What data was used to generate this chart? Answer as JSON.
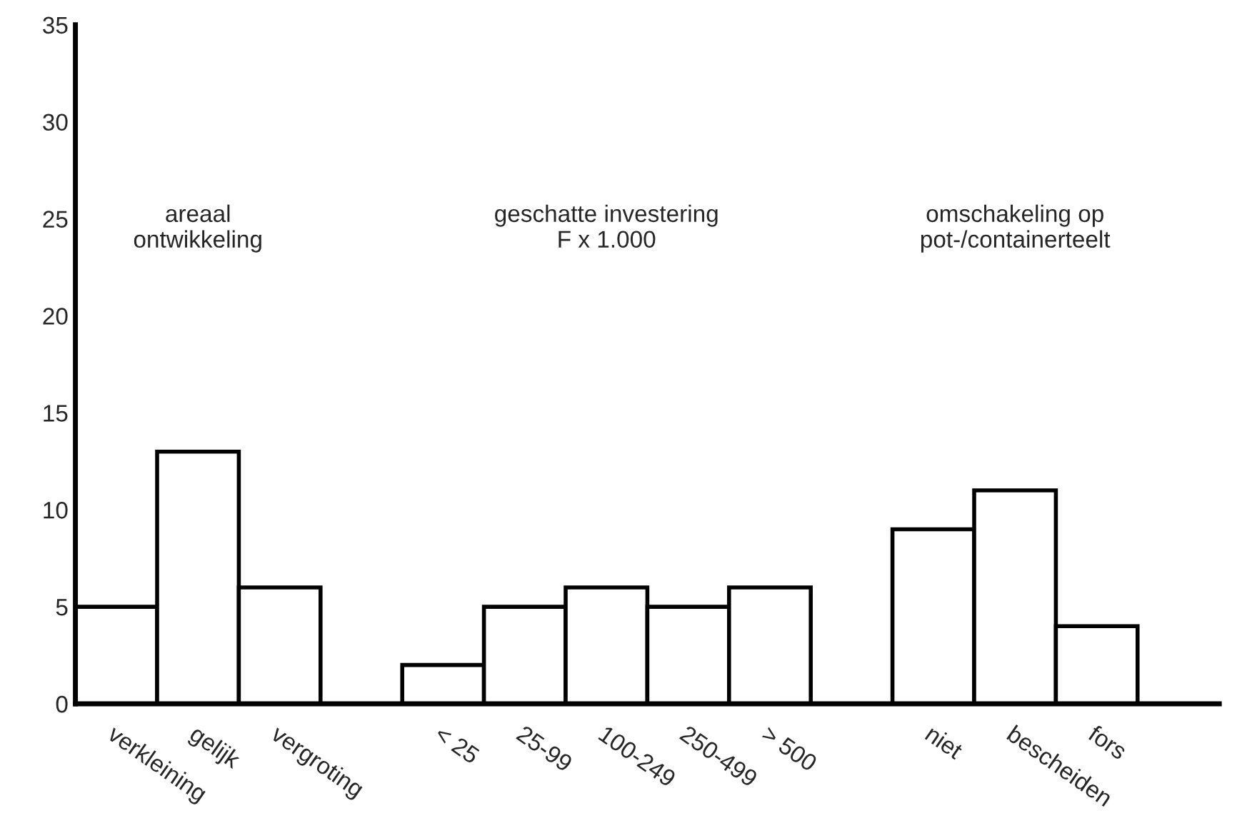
{
  "chart_data": {
    "type": "bar",
    "categories": [
      "verkleining",
      "gelijk",
      "vergroting",
      null,
      "< 25",
      "25-99",
      "100-249",
      "250-499",
      "> 500",
      null,
      "niet",
      "bescheiden",
      "fors",
      null
    ],
    "values": [
      5,
      13,
      6,
      null,
      2,
      5,
      6,
      5,
      6,
      null,
      9,
      11,
      4,
      null
    ],
    "color": "#ffffff",
    "ylim": [
      0,
      35
    ],
    "yticks": [
      0,
      5,
      10,
      15,
      20,
      25,
      30,
      35
    ],
    "grid": false,
    "annotations": [
      "areaal\nontwikkeling",
      "geschatte investering\nF x 1.000",
      "omschakeling op\npot-/containerteelt"
    ]
  }
}
